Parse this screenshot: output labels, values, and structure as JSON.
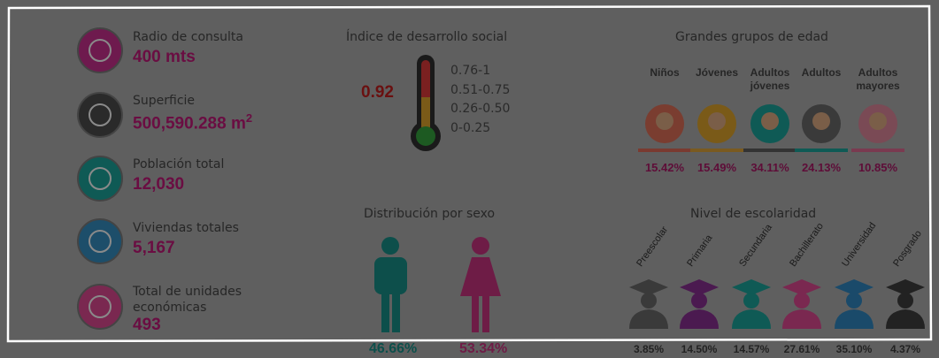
{
  "stats": [
    {
      "label": "Radio de consulta",
      "value": "400 mts"
    },
    {
      "label": "Superficie",
      "value": "500,590.288 m",
      "sup": "2"
    },
    {
      "label": "Población total",
      "value": "12,030"
    },
    {
      "label": "Viviendas totales",
      "value": "5,167"
    },
    {
      "label": "Total de unidades económicas",
      "value": "493"
    }
  ],
  "social_index": {
    "title": "Índice de desarrollo social",
    "value": "0.92",
    "ranges": [
      "0.76-1",
      "0.51-0.75",
      "0.26-0.50",
      "0-0.25"
    ]
  },
  "age_groups": {
    "title": "Grandes grupos de edad",
    "groups": [
      {
        "label": "Niños",
        "percent": "15.42%"
      },
      {
        "label": "Jóvenes",
        "percent": "15.49%"
      },
      {
        "label": "Adultos jóvenes",
        "percent": "34.11%"
      },
      {
        "label": "Adultos",
        "percent": "24.13%"
      },
      {
        "label": "Adultos mayores",
        "percent": "10.85%"
      }
    ]
  },
  "sex": {
    "title": "Distribución por sexo",
    "male": "46.66%",
    "female": "53.34%"
  },
  "schooling": {
    "title": "Nivel de escolaridad",
    "levels": [
      {
        "label": "Preescolar",
        "percent": "3.85%"
      },
      {
        "label": "Primaria",
        "percent": "14.50%"
      },
      {
        "label": "Secundaria",
        "percent": "14.57%"
      },
      {
        "label": "Bachillerato",
        "percent": "27.61%"
      },
      {
        "label": "Universidad",
        "percent": "35.10%"
      },
      {
        "label": "Posgrado",
        "percent": "4.37%"
      }
    ]
  }
}
